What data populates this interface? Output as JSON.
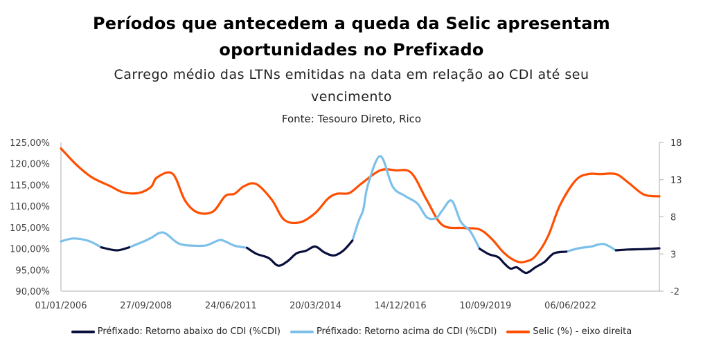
{
  "chart_data": {
    "type": "line",
    "title": "Períodos que antecedem a queda da Selic apresentam oportunidades no Prefixado",
    "title_lines": [
      "Períodos que antecedem a queda da Selic apresentam",
      "oportunidades no Prefixado"
    ],
    "subtitle_lines": [
      "Carrego médio das LTNs emitidas na data em relação ao CDI até seu",
      "vencimento"
    ],
    "source": "Fonte: Tesouro Direto, Rico",
    "x_range": [
      2006.0,
      2025.3
    ],
    "x_ticks": [
      {
        "label": "01/01/2006",
        "value": 2006.0
      },
      {
        "label": "27/09/2008",
        "value": 2008.74
      },
      {
        "label": "24/06/2011",
        "value": 2011.48
      },
      {
        "label": "20/03/2014",
        "value": 2014.21
      },
      {
        "label": "14/12/2016",
        "value": 2016.95
      },
      {
        "label": "10/09/2019",
        "value": 2019.69
      },
      {
        "label": "06/06/2022",
        "value": 2022.43
      }
    ],
    "y_left": {
      "range": [
        90,
        125
      ],
      "ticks": [
        "125,00%",
        "120,00%",
        "115,00%",
        "110,00%",
        "105,00%",
        "100,00%",
        "95,00%",
        "90,00%"
      ],
      "tick_values": [
        125,
        120,
        115,
        110,
        105,
        100,
        95,
        90
      ]
    },
    "y_right": {
      "range": [
        -2,
        18
      ],
      "ticks": [
        "18",
        "13",
        "8",
        "3",
        "-2"
      ],
      "tick_values": [
        18,
        13,
        8,
        3,
        -2
      ]
    },
    "series": [
      {
        "name": "Préfixado: Retorno abaixo do CDI (%CDI)",
        "axis": "left",
        "color": "#0a0f3c",
        "x": [
          2006.0,
          2006.4,
          2006.9,
          2007.3,
          2007.8,
          2008.2,
          2008.7,
          2008.9,
          2009.3,
          2009.8,
          2010.3,
          2010.7,
          2011.1,
          2011.3,
          2011.6,
          2012.0,
          2012.3,
          2012.7,
          2013.0,
          2013.3,
          2013.6,
          2013.9,
          2014.2,
          2014.5,
          2014.8,
          2015.1,
          2015.4,
          2015.6,
          2015.75,
          2015.9,
          2016.3,
          2016.7,
          2017.1,
          2017.5,
          2017.8,
          2018.1,
          2018.3,
          2018.6,
          2018.9,
          2019.2,
          2019.5,
          2019.8,
          2020.1,
          2020.3,
          2020.5,
          2020.7,
          2021.0,
          2021.3,
          2021.6,
          2021.9,
          2022.3,
          2022.7,
          2023.1,
          2023.5,
          2023.9,
          2024.3,
          2024.8,
          2025.3
        ],
        "values": [
          null,
          null,
          null,
          100.3,
          99.6,
          100.3,
          null,
          null,
          null,
          null,
          null,
          null,
          null,
          null,
          null,
          100.2,
          98.8,
          97.8,
          96.0,
          97.0,
          98.9,
          99.5,
          100.5,
          99.1,
          98.4,
          99.5,
          101.9,
          null,
          null,
          null,
          null,
          null,
          null,
          null,
          null,
          null,
          null,
          null,
          null,
          null,
          100.0,
          98.7,
          98.0,
          96.5,
          95.3,
          95.6,
          94.3,
          95.6,
          96.9,
          98.9,
          99.3,
          null,
          null,
          null,
          99.6,
          99.8,
          99.9,
          100.1
        ]
      },
      {
        "name": "Préfixado: Retorno acima do CDI (%CDI)",
        "axis": "left",
        "color": "#7cc0ea",
        "x": [
          2006.0,
          2006.4,
          2006.9,
          2007.3,
          2007.8,
          2008.2,
          2008.7,
          2008.9,
          2009.3,
          2009.8,
          2010.3,
          2010.7,
          2011.1,
          2011.3,
          2011.6,
          2012.0,
          2012.3,
          2012.7,
          2013.0,
          2013.3,
          2013.6,
          2013.9,
          2014.2,
          2014.5,
          2014.8,
          2015.1,
          2015.4,
          2015.6,
          2015.75,
          2015.9,
          2016.3,
          2016.7,
          2017.1,
          2017.5,
          2017.8,
          2018.1,
          2018.3,
          2018.6,
          2018.9,
          2019.2,
          2019.5,
          2019.8,
          2020.1,
          2020.3,
          2020.5,
          2020.7,
          2021.0,
          2021.3,
          2021.6,
          2021.9,
          2022.3,
          2022.7,
          2023.1,
          2023.5,
          2023.9,
          2024.3,
          2024.8,
          2025.3
        ],
        "values": [
          101.7,
          102.4,
          101.8,
          100.3,
          null,
          100.3,
          101.8,
          102.5,
          103.8,
          101.2,
          100.7,
          100.8,
          102.0,
          101.7,
          100.7,
          100.2,
          null,
          null,
          null,
          null,
          null,
          null,
          null,
          null,
          null,
          null,
          101.9,
          106.5,
          109.2,
          115.0,
          121.8,
          114.6,
          112.4,
          110.6,
          107.4,
          107.2,
          109.0,
          111.3,
          106.3,
          104.1,
          100.0,
          null,
          null,
          null,
          null,
          null,
          null,
          null,
          null,
          null,
          99.3,
          100.1,
          100.5,
          101.1,
          99.6,
          null,
          null,
          null
        ]
      },
      {
        "name": "Selic (%) - eixo direita",
        "axis": "right",
        "color": "#ff4e00",
        "x": [
          2006.0,
          2006.5,
          2007.0,
          2007.6,
          2008.0,
          2008.5,
          2008.9,
          2009.1,
          2009.6,
          2010.0,
          2010.4,
          2010.9,
          2011.3,
          2011.6,
          2011.9,
          2012.3,
          2012.8,
          2013.2,
          2013.7,
          2014.2,
          2014.6,
          2014.9,
          2015.3,
          2015.7,
          2016.3,
          2016.8,
          2017.3,
          2017.8,
          2018.3,
          2019.0,
          2019.5,
          2019.9,
          2020.3,
          2020.7,
          2021.0,
          2021.3,
          2021.7,
          2022.1,
          2022.6,
          2023.0,
          2023.4,
          2023.9,
          2024.3,
          2024.8,
          2025.3
        ],
        "values": [
          17.2,
          15.0,
          13.3,
          12.1,
          11.3,
          11.2,
          12.0,
          13.3,
          13.8,
          10.2,
          8.6,
          8.7,
          10.8,
          11.1,
          12.1,
          12.4,
          10.3,
          7.6,
          7.25,
          8.5,
          10.4,
          11.1,
          11.2,
          12.5,
          14.25,
          14.25,
          13.9,
          10.25,
          6.9,
          6.5,
          6.3,
          5.0,
          3.1,
          2.0,
          2.0,
          2.7,
          5.3,
          9.6,
          12.9,
          13.75,
          13.75,
          13.75,
          12.6,
          11.0,
          10.75
        ]
      }
    ],
    "legend": {
      "position": "bottom",
      "entries": [
        "Préfixado: Retorno abaixo do CDI (%CDI)",
        "Préfixado: Retorno acima do CDI (%CDI)",
        "Selic (%) - eixo direita"
      ]
    },
    "grid": false
  }
}
